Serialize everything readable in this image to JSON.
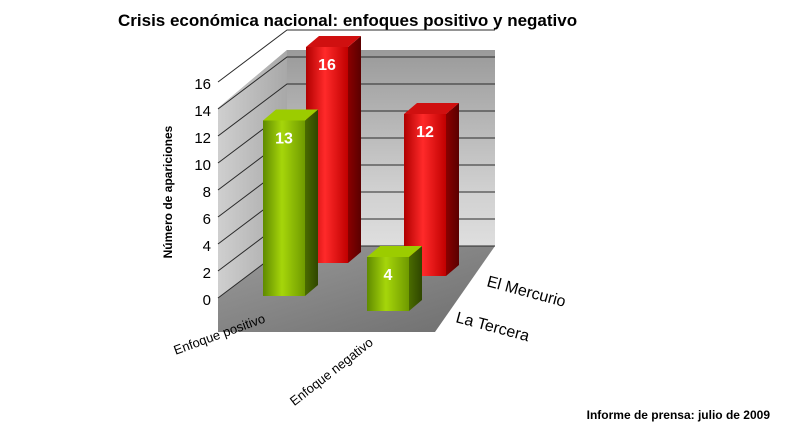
{
  "chart_data": {
    "type": "bar",
    "title": "Crisis económica nacional: enfoques positivo y negativo",
    "ylabel": "Número de apariciones",
    "xlabel": "",
    "categories": [
      "Enfoque positivo",
      "Enfoque negativo"
    ],
    "series": [
      {
        "name": "La Tercera",
        "values": [
          13,
          4
        ]
      },
      {
        "name": "El Mercurio",
        "values": [
          16,
          12
        ]
      }
    ],
    "ylim": [
      0,
      16
    ],
    "yticks": [
      "0",
      "2",
      "4",
      "6",
      "8",
      "10",
      "12",
      "14",
      "16"
    ],
    "grid": true,
    "value_labels": true,
    "colors": {
      "La Tercera": "#8fc400",
      "El Mercurio": "#e01010"
    }
  },
  "footnote": "Informe de prensa: julio de 2009"
}
